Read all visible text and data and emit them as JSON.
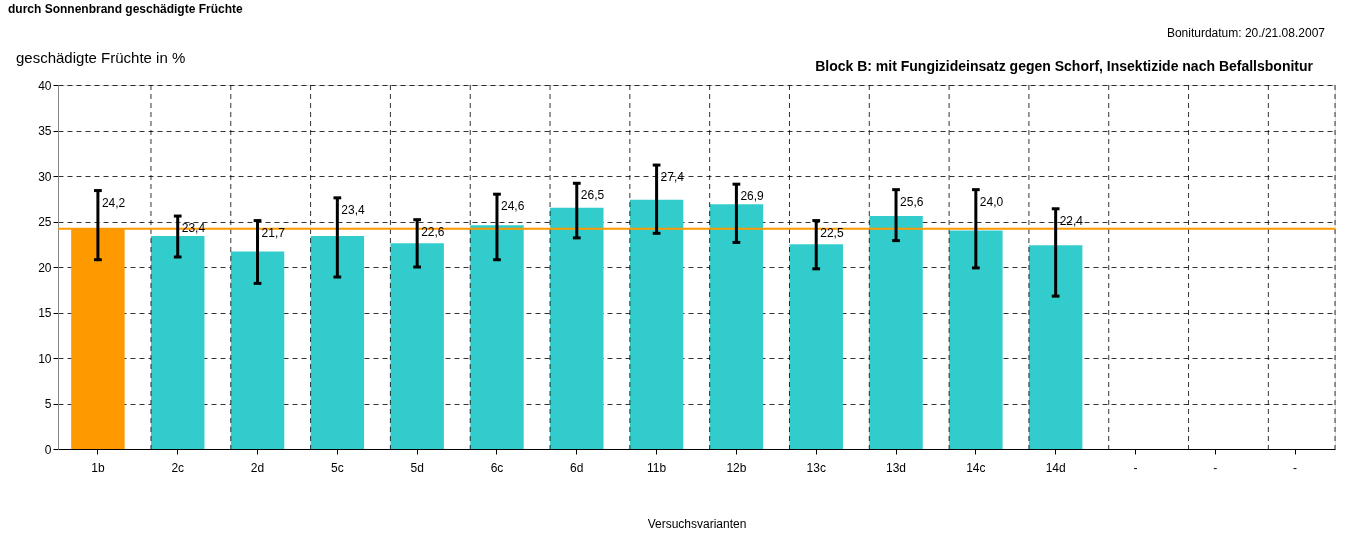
{
  "chart_data": {
    "type": "bar",
    "title": "durch Sonnenbrand geschädigte  Früchte",
    "subtitle": "Block B: mit Fungizideinsatz gegen Schorf, Insektizide nach Befallsbonitur",
    "ylabel": "geschädigte Früchte in %",
    "xlabel": "Versuchsvarianten",
    "annotations": [
      "Boniturdatum: 20./21.08.2007"
    ],
    "categories": [
      "1b",
      "2c",
      "2d",
      "5c",
      "5d",
      "6c",
      "6d",
      "11b",
      "12b",
      "13c",
      "13d",
      "14c",
      "14d",
      "-",
      "-",
      "-"
    ],
    "values": [
      24.2,
      23.4,
      21.7,
      23.4,
      22.6,
      24.6,
      26.5,
      27.4,
      26.9,
      22.5,
      25.6,
      24.0,
      22.4,
      null,
      null,
      null
    ],
    "value_labels": [
      "24,2",
      "23,4",
      "21,7",
      "23,4",
      "22,6",
      "24,6",
      "26,5",
      "27,4",
      "26,9",
      "22,5",
      "25,6",
      "24,0",
      "22,4",
      null,
      null,
      null
    ],
    "errors": [
      [
        20.8,
        28.4
      ],
      [
        21.1,
        25.6
      ],
      [
        18.2,
        25.1
      ],
      [
        18.9,
        27.6
      ],
      [
        20.0,
        25.2
      ],
      [
        20.8,
        28.0
      ],
      [
        23.2,
        29.2
      ],
      [
        23.7,
        31.2
      ],
      [
        22.7,
        29.1
      ],
      [
        19.8,
        25.1
      ],
      [
        22.9,
        28.5
      ],
      [
        19.9,
        28.5
      ],
      [
        16.8,
        26.4
      ],
      null,
      null,
      null
    ],
    "colors": [
      "#ff9900",
      "#33cccc",
      "#33cccc",
      "#33cccc",
      "#33cccc",
      "#33cccc",
      "#33cccc",
      "#33cccc",
      "#33cccc",
      "#33cccc",
      "#33cccc",
      "#33cccc",
      "#33cccc",
      null,
      null,
      null
    ],
    "ylim": [
      0,
      40
    ],
    "yticks": [
      0,
      5,
      10,
      15,
      20,
      25,
      30,
      35,
      40
    ],
    "ref_lines": [
      {
        "axis": "y",
        "value": 24.2,
        "color": "#ff9900"
      }
    ],
    "grid": true
  }
}
